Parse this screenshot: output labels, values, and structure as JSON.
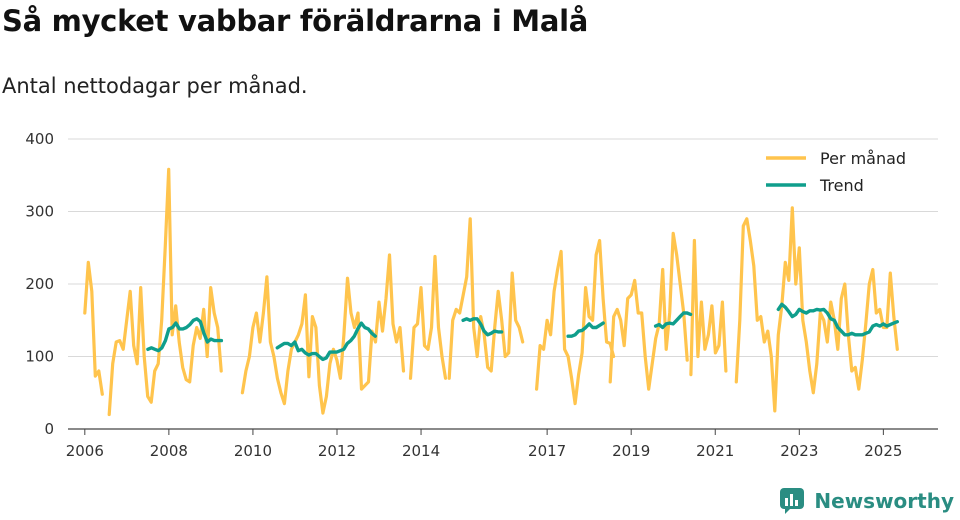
{
  "header": {
    "title": "Så mycket vabbar föräldrarna i Malå",
    "subtitle": "Antal nettodagar per månad."
  },
  "brand": {
    "name": "Newsworthy",
    "color": "#2a8d82"
  },
  "colors": {
    "monthly": "#ffc44d",
    "trend": "#0f9e8c",
    "grid": "#d9d9d9",
    "axis": "#444444"
  },
  "chart_data": {
    "type": "line",
    "title": "Så mycket vabbar föräldrarna i Malå",
    "subtitle": "Antal nettodagar per månad.",
    "xlabel": "",
    "ylabel": "",
    "ylim": [
      0,
      400
    ],
    "xlim": [
      2005.6,
      2026.3
    ],
    "yticks": [
      0,
      100,
      200,
      300,
      400
    ],
    "xticks": [
      2006,
      2008,
      2010,
      2012,
      2014,
      2017,
      2019,
      2021,
      2023,
      2025
    ],
    "grid": "horizontal",
    "legend_position": "top-right",
    "legend": [
      "Per månad",
      "Trend"
    ],
    "series": [
      {
        "name": "Per månad",
        "color": "#ffc44d",
        "segments": [
          {
            "start": 2006.0,
            "step": 0.0833,
            "values": [
              160,
              230,
              190,
              73,
              80,
              48
            ]
          },
          {
            "start": 2006.58,
            "step": 0.0833,
            "values": [
              20,
              90,
              120,
              122,
              110,
              150,
              190,
              115,
              90,
              195,
              100,
              45,
              37,
              80,
              90,
              150,
              250,
              358,
              130,
              170,
              120,
              85,
              68,
              65,
              115,
              140,
              125,
              165,
              100,
              195,
              160,
              140,
              80
            ]
          },
          {
            "start": 2009.75,
            "step": 0.0833,
            "values": [
              50,
              80,
              100,
              140,
              160,
              120,
              160,
              210,
              120,
              100,
              70,
              50,
              35,
              80,
              110,
              120,
              130,
              145,
              185,
              72,
              155,
              140,
              60,
              22,
              45,
              90,
              110,
              95,
              70,
              130,
              208,
              160,
              140,
              160,
              55,
              60,
              65,
              135,
              120,
              175,
              135,
              180,
              240,
              145,
              120,
              140,
              80
            ]
          },
          {
            "start": 2013.75,
            "step": 0.0833,
            "values": [
              70,
              140,
              145,
              195,
              115,
              110,
              140,
              238,
              140,
              100,
              70
            ]
          },
          {
            "start": 2014.67,
            "step": 0.0833,
            "values": [
              70,
              150,
              165,
              160,
              185,
              210,
              290,
              140,
              100,
              155,
              130,
              85,
              80,
              140,
              190,
              150,
              100,
              105,
              215,
              150,
              140,
              120
            ]
          },
          {
            "start": 2016.75,
            "step": 0.0833,
            "values": [
              55,
              115,
              110,
              150,
              130,
              190,
              220,
              245,
              110,
              100,
              70,
              35,
              75,
              105,
              195,
              155,
              150,
              240,
              260,
              180,
              120,
              118,
              100
            ]
          },
          {
            "start": 2018.5,
            "step": 0.0833,
            "values": [
              65,
              155,
              165,
              150,
              115,
              180,
              185,
              205,
              160,
              160,
              100,
              55,
              90,
              125,
              145,
              220,
              110,
              160,
              270,
              240,
              200,
              160,
              95
            ]
          },
          {
            "start": 2020.42,
            "step": 0.0833,
            "values": [
              75,
              260,
              100,
              175,
              110,
              130,
              170,
              105,
              115,
              175,
              80
            ]
          },
          {
            "start": 2021.5,
            "step": 0.0833,
            "values": [
              65,
              150,
              280,
              290,
              260,
              225,
              150,
              155,
              120,
              135,
              100,
              25,
              130,
              170,
              230,
              205,
              305,
              200,
              250,
              150,
              120,
              80,
              50,
              90,
              160,
              150,
              120,
              175,
              150,
              110,
              180,
              200,
              130,
              80,
              85,
              55,
              95,
              145,
              200,
              220,
              160,
              165,
              140,
              140,
              215,
              155,
              110
            ]
          }
        ]
      },
      {
        "name": "Trend",
        "color": "#0f9e8c",
        "segments": [
          {
            "start": 2007.5,
            "step": 0.0833,
            "values": [
              110,
              112,
              110,
              108,
              112,
              122,
              138,
              140,
              146,
              138,
              138,
              140,
              144,
              150,
              152,
              148,
              132,
              120,
              124,
              122,
              122,
              122
            ]
          },
          {
            "start": 2010.58,
            "step": 0.0833,
            "values": [
              112,
              115,
              118,
              118,
              115,
              120,
              108,
              110,
              105,
              102,
              104,
              104,
              100,
              96,
              98,
              106,
              106,
              106,
              108,
              110,
              118,
              122,
              128,
              138,
              146,
              140,
              138,
              132,
              128
            ]
          },
          {
            "start": 2015.0,
            "step": 0.0833,
            "values": [
              150,
              152,
              150,
              152,
              152,
              145,
              135,
              130,
              132,
              135,
              134,
              134
            ]
          },
          {
            "start": 2017.5,
            "step": 0.0833,
            "values": [
              128,
              128,
              130,
              135,
              136,
              140,
              145,
              140,
              140,
              143,
              146
            ]
          },
          {
            "start": 2019.58,
            "step": 0.0833,
            "values": [
              142,
              144,
              140,
              145,
              146,
              145,
              150,
              155,
              160,
              160,
              158
            ]
          },
          {
            "start": 2022.5,
            "step": 0.0833,
            "values": [
              165,
              172,
              168,
              162,
              155,
              158,
              165,
              162,
              160,
              163,
              163,
              165,
              164,
              165,
              160,
              152,
              150,
              140,
              135,
              130,
              130,
              132,
              130,
              130,
              130,
              132,
              134,
              142,
              144,
              142,
              145,
              142,
              144,
              146,
              148
            ]
          }
        ]
      }
    ]
  }
}
